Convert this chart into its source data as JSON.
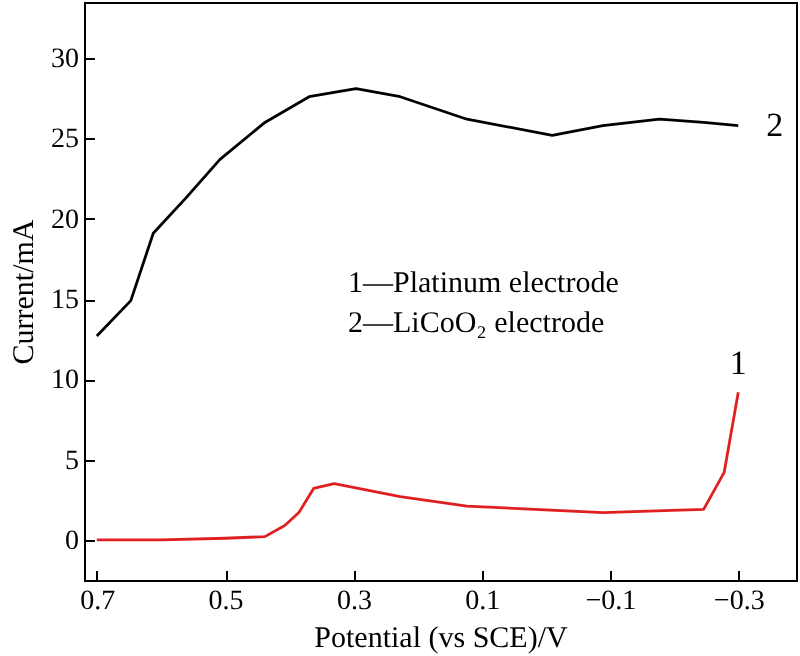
{
  "chart_data": {
    "type": "line",
    "xlabel": "Potential (vs SCE)/V",
    "ylabel": "Current/mA",
    "xlim": [
      0.72,
      -0.39
    ],
    "xticks": [
      0.7,
      0.5,
      0.3,
      0.1,
      -0.1,
      -0.3
    ],
    "ylim": [
      -2.5,
      33.5
    ],
    "yticks": [
      0,
      5,
      10,
      15,
      20,
      25,
      30
    ],
    "grid": false,
    "annotations": [
      "1—Platinum electrode",
      "2—LiCoO₂ electrode"
    ],
    "series": [
      {
        "name": "1",
        "color": "#e02020",
        "x": [
          0.7,
          0.6,
          0.5,
          0.438,
          0.407,
          0.385,
          0.362,
          0.33,
          0.227,
          0.123,
          -0.089,
          -0.246,
          -0.278,
          -0.3
        ],
        "values": [
          0,
          0,
          0.1,
          0.2,
          0.9,
          1.7,
          3.2,
          3.5,
          2.7,
          2.1,
          1.7,
          1.9,
          4.2,
          9.2
        ]
      },
      {
        "name": "2",
        "color": "#000000",
        "x": [
          0.7,
          0.647,
          0.612,
          0.561,
          0.508,
          0.438,
          0.369,
          0.296,
          0.227,
          0.123,
          -0.01,
          -0.089,
          -0.177,
          -0.246,
          -0.3
        ],
        "values": [
          12.7,
          14.9,
          19.1,
          21.3,
          23.7,
          26.0,
          27.6,
          28.1,
          27.6,
          26.2,
          25.2,
          25.8,
          26.2,
          26.0,
          25.8
        ]
      }
    ]
  }
}
